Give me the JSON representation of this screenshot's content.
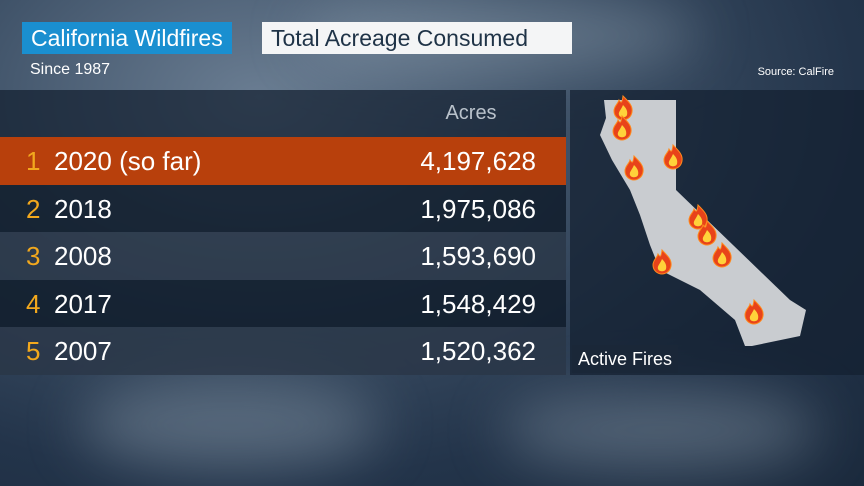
{
  "header": {
    "title": "California Wildfires",
    "subtitle": "Total Acreage Consumed",
    "since": "Since 1987",
    "source": "Source: CalFire"
  },
  "table": {
    "column_header": "Acres",
    "rows": [
      [
        "1",
        "2020 (so far)",
        "4,197,628"
      ],
      [
        "2",
        "2018",
        "1,975,086"
      ],
      [
        "3",
        "2008",
        "1,593,690"
      ],
      [
        "4",
        "2017",
        "1,548,429"
      ],
      [
        "5",
        "2007",
        "1,520,362"
      ]
    ]
  },
  "map": {
    "label": "Active Fires"
  }
}
